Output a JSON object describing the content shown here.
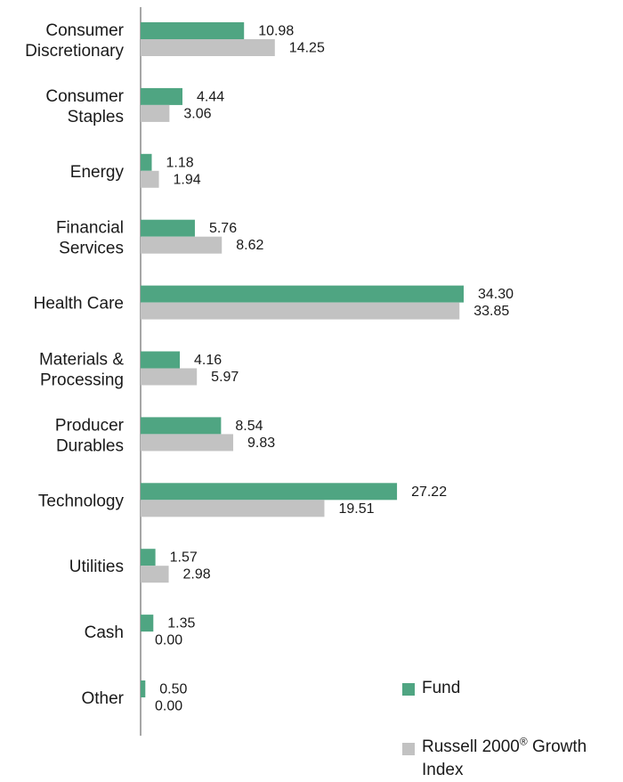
{
  "chart_data": {
    "type": "bar",
    "orientation": "horizontal",
    "categories": [
      [
        "Consumer",
        "Discretionary"
      ],
      [
        "Consumer",
        "Staples"
      ],
      [
        "Energy"
      ],
      [
        "Financial",
        "Services"
      ],
      [
        "Health Care"
      ],
      [
        "Materials &",
        "Processing"
      ],
      [
        "Producer",
        "Durables"
      ],
      [
        "Technology"
      ],
      [
        "Utilities"
      ],
      [
        "Cash"
      ],
      [
        "Other"
      ]
    ],
    "series": [
      {
        "name": "Fund",
        "color": "#4fa582",
        "values": [
          10.98,
          4.44,
          1.18,
          5.76,
          34.3,
          4.16,
          8.54,
          27.22,
          1.57,
          1.35,
          0.5
        ]
      },
      {
        "name": "Russell 2000® Growth Index",
        "color": "#c2c2c2",
        "values": [
          14.25,
          3.06,
          1.94,
          8.62,
          33.85,
          5.97,
          9.83,
          19.51,
          2.98,
          0.0,
          0.0
        ]
      }
    ],
    "value_format": "0.00",
    "xlim": [
      0,
      34.3
    ],
    "grid": false,
    "legend_position": "bottom-right"
  },
  "legend": {
    "fund": "Fund",
    "index_line1": "Russell 2000",
    "index_reg": "®",
    "index_line1_tail": " Growth",
    "index_line2": "Index"
  }
}
